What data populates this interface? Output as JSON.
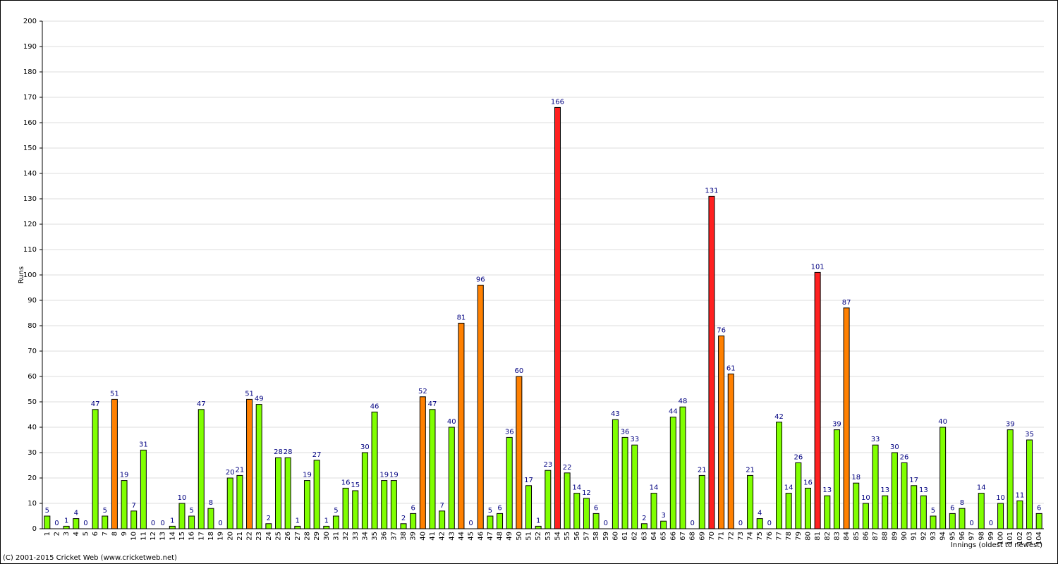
{
  "chart_data": {
    "type": "bar",
    "y_label": "Runs",
    "x_label": "Innings (oldest to newest)",
    "footer": "(C) 2001-2015 Cricket Web (www.cricketweb.net)",
    "categories": [
      "1",
      "2",
      "3",
      "4",
      "5",
      "6",
      "7",
      "8",
      "9",
      "10",
      "11",
      "12",
      "13",
      "14",
      "15",
      "16",
      "17",
      "18",
      "19",
      "20",
      "21",
      "22",
      "23",
      "24",
      "25",
      "26",
      "27",
      "28",
      "29",
      "30",
      "31",
      "32",
      "33",
      "34",
      "35",
      "36",
      "37",
      "38",
      "39",
      "40",
      "41",
      "42",
      "43",
      "44",
      "45",
      "46",
      "47",
      "48",
      "49",
      "50",
      "51",
      "52",
      "53",
      "54",
      "55",
      "56",
      "57",
      "58",
      "59",
      "60",
      "61",
      "62",
      "63",
      "64",
      "65",
      "66",
      "67",
      "68",
      "69",
      "70",
      "71",
      "72",
      "73",
      "74",
      "75",
      "76",
      "77",
      "78",
      "79",
      "80",
      "81",
      "82",
      "83",
      "84",
      "85",
      "86",
      "87",
      "88",
      "89",
      "90",
      "91",
      "92",
      "93",
      "94",
      "95",
      "96",
      "97",
      "98",
      "99",
      "100",
      "101",
      "102",
      "103",
      "104"
    ],
    "values": [
      5,
      0,
      1,
      4,
      0,
      47,
      5,
      51,
      19,
      7,
      31,
      0,
      0,
      1,
      10,
      5,
      47,
      8,
      0,
      20,
      21,
      51,
      49,
      2,
      28,
      28,
      1,
      19,
      27,
      1,
      5,
      16,
      15,
      30,
      46,
      19,
      19,
      2,
      6,
      52,
      47,
      7,
      40,
      81,
      0,
      96,
      5,
      6,
      36,
      60,
      17,
      1,
      23,
      166,
      22,
      14,
      12,
      6,
      0,
      43,
      36,
      33,
      2,
      14,
      3,
      44,
      48,
      0,
      21,
      131,
      76,
      61,
      0,
      21,
      4,
      0,
      42,
      14,
      26,
      16,
      101,
      13,
      39,
      87,
      18,
      10,
      33,
      13,
      30,
      26,
      17,
      13,
      5,
      40,
      6,
      8,
      0,
      14,
      0,
      10,
      39,
      11,
      35,
      6
    ],
    "colors": [
      "#80ff00",
      "#80ff00",
      "#80ff00",
      "#80ff00",
      "#80ff00",
      "#80ff00",
      "#80ff00",
      "#ff8000",
      "#80ff00",
      "#80ff00",
      "#80ff00",
      "#80ff00",
      "#80ff00",
      "#80ff00",
      "#80ff00",
      "#80ff00",
      "#80ff00",
      "#80ff00",
      "#80ff00",
      "#80ff00",
      "#80ff00",
      "#ff8000",
      "#80ff00",
      "#80ff00",
      "#80ff00",
      "#80ff00",
      "#80ff00",
      "#80ff00",
      "#80ff00",
      "#80ff00",
      "#80ff00",
      "#80ff00",
      "#80ff00",
      "#80ff00",
      "#80ff00",
      "#80ff00",
      "#80ff00",
      "#80ff00",
      "#80ff00",
      "#ff8000",
      "#80ff00",
      "#80ff00",
      "#80ff00",
      "#ff8000",
      "#80ff00",
      "#ff8000",
      "#80ff00",
      "#80ff00",
      "#80ff00",
      "#ff8000",
      "#80ff00",
      "#80ff00",
      "#80ff00",
      "#ff2020",
      "#80ff00",
      "#80ff00",
      "#80ff00",
      "#80ff00",
      "#80ff00",
      "#80ff00",
      "#80ff00",
      "#80ff00",
      "#80ff00",
      "#80ff00",
      "#80ff00",
      "#80ff00",
      "#80ff00",
      "#80ff00",
      "#80ff00",
      "#ff2020",
      "#ff8000",
      "#ff8000",
      "#80ff00",
      "#80ff00",
      "#80ff00",
      "#80ff00",
      "#80ff00",
      "#80ff00",
      "#80ff00",
      "#80ff00",
      "#ff2020",
      "#80ff00",
      "#80ff00",
      "#ff8000",
      "#80ff00",
      "#80ff00",
      "#80ff00",
      "#80ff00",
      "#80ff00",
      "#80ff00",
      "#80ff00",
      "#80ff00",
      "#80ff00",
      "#80ff00",
      "#80ff00",
      "#80ff00",
      "#80ff00",
      "#80ff00",
      "#80ff00",
      "#80ff00",
      "#80ff00",
      "#80ff00",
      "#80ff00",
      "#80ff00"
    ],
    "ylim": [
      0,
      200
    ],
    "yticks": [
      0,
      10,
      20,
      30,
      40,
      50,
      60,
      70,
      80,
      90,
      100,
      110,
      120,
      130,
      140,
      150,
      160,
      170,
      180,
      190,
      200
    ],
    "grid": true
  }
}
